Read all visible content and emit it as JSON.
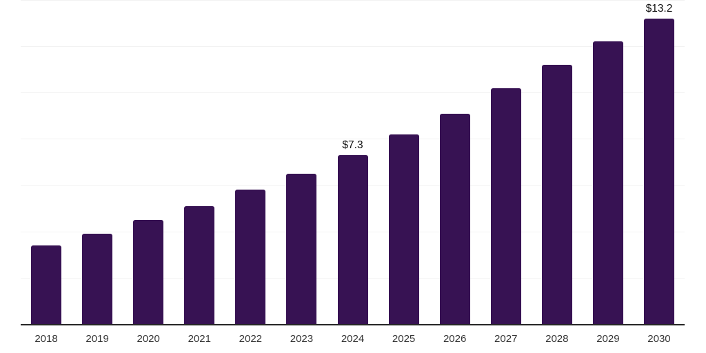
{
  "chart_data": {
    "type": "bar",
    "title": "",
    "categories": [
      "2018",
      "2019",
      "2020",
      "2021",
      "2022",
      "2023",
      "2024",
      "2025",
      "2026",
      "2027",
      "2028",
      "2029",
      "2030"
    ],
    "values": [
      3.4,
      3.9,
      4.5,
      5.1,
      5.8,
      6.5,
      7.3,
      8.2,
      9.1,
      10.2,
      11.2,
      12.2,
      13.2
    ],
    "data_labels": [
      null,
      null,
      null,
      null,
      null,
      null,
      "$7.3",
      null,
      null,
      null,
      null,
      null,
      "$13.2"
    ],
    "xlabel": "",
    "ylabel": "",
    "ylim": [
      0,
      14
    ],
    "gridline_step": 2,
    "grid": "horizontal",
    "legend": "none",
    "colors": {
      "bar": "#371253",
      "data_label": "#111111",
      "axis_tick_label": "#333333",
      "gridline": "#f2f2f2",
      "axis_line": "#262626",
      "background": "#ffffff"
    }
  }
}
